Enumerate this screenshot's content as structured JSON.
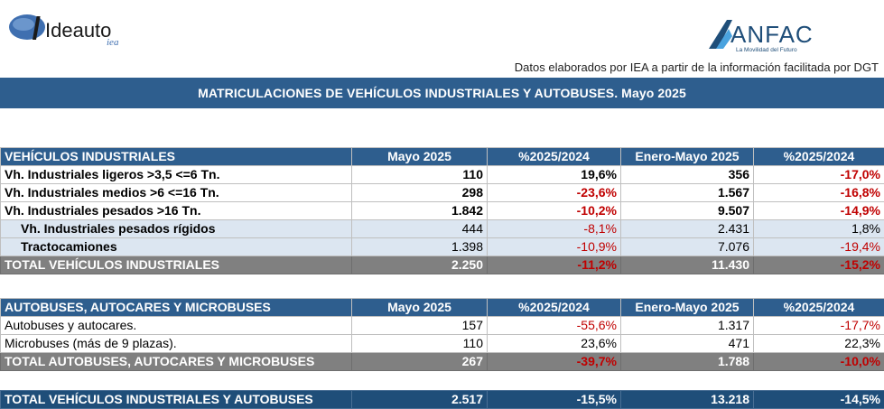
{
  "header": {
    "left_logo_text": "Ideauto",
    "left_logo_sub": "iea",
    "right_logo_text": "ANFAC",
    "right_logo_tagline": "La Movilidad del Futuro",
    "source_note": "Datos elaborados por IEA a partir de la información facilitada por DGT",
    "banner_title": "MATRICULACIONES DE VEHÍCULOS INDUSTRIALES Y AUTOBUSES.  Mayo 2025"
  },
  "industrial": {
    "columns": [
      "VEHÍCULOS INDUSTRIALES",
      "Mayo 2025",
      "%2025/2024",
      "Enero-Mayo 2025",
      "%2025/2024"
    ],
    "rows": [
      {
        "label": "Vh. Industriales ligeros >3,5 <=6 Tn.",
        "mayo": "110",
        "pct_mayo": "19,6%",
        "ene_may": "356",
        "pct_ene": "-17,0%"
      },
      {
        "label": "Vh. Industriales medios >6  <=16 Tn.",
        "mayo": "298",
        "pct_mayo": "-23,6%",
        "ene_may": "1.567",
        "pct_ene": "-16,8%"
      },
      {
        "label": "Vh. Industriales  pesados >16 Tn.",
        "mayo": "1.842",
        "pct_mayo": "-10,2%",
        "ene_may": "9.507",
        "pct_ene": "-14,9%"
      },
      {
        "label": "Vh. Industriales pesados rígidos",
        "mayo": "444",
        "pct_mayo": "-8,1%",
        "ene_may": "2.431",
        "pct_ene": "1,8%"
      },
      {
        "label": "Tractocamiones",
        "mayo": "1.398",
        "pct_mayo": "-10,9%",
        "ene_may": "7.076",
        "pct_ene": "-19,4%"
      }
    ],
    "total": {
      "label": "TOTAL VEHÍCULOS INDUSTRIALES",
      "mayo": "2.250",
      "pct_mayo": "-11,2%",
      "ene_may": "11.430",
      "pct_ene": "-15,2%"
    }
  },
  "buses": {
    "columns": [
      "AUTOBUSES, AUTOCARES Y MICROBUSES",
      "Mayo 2025",
      "%2025/2024",
      "Enero-Mayo 2025",
      "%2025/2024"
    ],
    "rows": [
      {
        "label": "Autobuses y autocares.",
        "mayo": "157",
        "pct_mayo": "-55,6%",
        "ene_may": "1.317",
        "pct_ene": "-17,7%"
      },
      {
        "label": "Microbuses (más de 9 plazas).",
        "mayo": "110",
        "pct_mayo": "23,6%",
        "ene_may": "471",
        "pct_ene": "22,3%"
      }
    ],
    "total": {
      "label": "TOTAL AUTOBUSES, AUTOCARES Y MICROBUSES",
      "mayo": "267",
      "pct_mayo": "-39,7%",
      "ene_may": "1.788",
      "pct_ene": "-10,0%"
    }
  },
  "grand_total": {
    "label": "TOTAL VEHÍCULOS INDUSTRIALES Y AUTOBUSES",
    "mayo": "2.517",
    "pct_mayo": "-15,5%",
    "ene_may": "13.218",
    "pct_ene": "-14,5%"
  },
  "colors": {
    "header_blue": "#2e5e8e",
    "subrow_blue": "#dce6f1",
    "total_gray": "#808080",
    "grand_navy": "#1f4e79",
    "negative_red": "#c00000"
  }
}
